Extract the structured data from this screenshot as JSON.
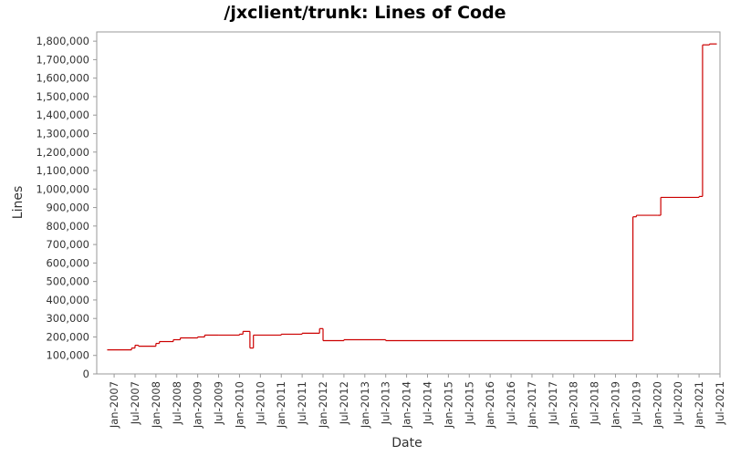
{
  "chart_data": {
    "type": "line",
    "title": "/jxclient/trunk: Lines of Code",
    "x_label": "Date",
    "y_label": "Lines",
    "color": "#cc0000",
    "step": true,
    "x": [
      "2006-11",
      "2007-06",
      "2007-07",
      "2007-08",
      "2008-01",
      "2008-02",
      "2008-06",
      "2008-08",
      "2009-01",
      "2009-03",
      "2009-07",
      "2010-01",
      "2010-02",
      "2010-04",
      "2010-05",
      "2011-01",
      "2011-07",
      "2011-12",
      "2012-01",
      "2012-07",
      "2013-07",
      "2019-06",
      "2019-07",
      "2020-01",
      "2020-02",
      "2021-01",
      "2021-02",
      "2021-04"
    ],
    "values": [
      130000,
      140000,
      155000,
      150000,
      165000,
      175000,
      185000,
      195000,
      200000,
      210000,
      210000,
      215000,
      230000,
      140000,
      210000,
      215000,
      220000,
      245000,
      180000,
      185000,
      180000,
      850000,
      858000,
      858000,
      955000,
      960000,
      1780000,
      1785000
    ],
    "xlim": [
      "2006-08",
      "2021-07"
    ],
    "xticks": [
      {
        "value": "2007-01",
        "label": "Jan-2007"
      },
      {
        "value": "2007-07",
        "label": "Jul-2007"
      },
      {
        "value": "2008-01",
        "label": "Jan-2008"
      },
      {
        "value": "2008-07",
        "label": "Jul-2008"
      },
      {
        "value": "2009-01",
        "label": "Jan-2009"
      },
      {
        "value": "2009-07",
        "label": "Jul-2009"
      },
      {
        "value": "2010-01",
        "label": "Jan-2010"
      },
      {
        "value": "2010-07",
        "label": "Jul-2010"
      },
      {
        "value": "2011-01",
        "label": "Jan-2011"
      },
      {
        "value": "2011-07",
        "label": "Jul-2011"
      },
      {
        "value": "2012-01",
        "label": "Jan-2012"
      },
      {
        "value": "2012-07",
        "label": "Jul-2012"
      },
      {
        "value": "2013-01",
        "label": "Jan-2013"
      },
      {
        "value": "2013-07",
        "label": "Jul-2013"
      },
      {
        "value": "2014-01",
        "label": "Jan-2014"
      },
      {
        "value": "2014-07",
        "label": "Jul-2014"
      },
      {
        "value": "2015-01",
        "label": "Jan-2015"
      },
      {
        "value": "2015-07",
        "label": "Jul-2015"
      },
      {
        "value": "2016-01",
        "label": "Jan-2016"
      },
      {
        "value": "2016-07",
        "label": "Jul-2016"
      },
      {
        "value": "2017-01",
        "label": "Jan-2017"
      },
      {
        "value": "2017-07",
        "label": "Jul-2017"
      },
      {
        "value": "2018-01",
        "label": "Jan-2018"
      },
      {
        "value": "2018-07",
        "label": "Jul-2018"
      },
      {
        "value": "2019-01",
        "label": "Jan-2019"
      },
      {
        "value": "2019-07",
        "label": "Jul-2019"
      },
      {
        "value": "2020-01",
        "label": "Jan-2020"
      },
      {
        "value": "2020-07",
        "label": "Jul-2020"
      },
      {
        "value": "2021-01",
        "label": "Jan-2021"
      },
      {
        "value": "2021-07",
        "label": "Jul-2021"
      }
    ],
    "ylim": [
      0,
      1850000
    ],
    "yticks": [
      0,
      {
        "value": 100000,
        "label": "100,000"
      },
      {
        "value": 200000,
        "label": "200,000"
      },
      {
        "value": 300000,
        "label": "300,000"
      },
      {
        "value": 400000,
        "label": "400,000"
      },
      {
        "value": 500000,
        "label": "500,000"
      },
      {
        "value": 600000,
        "label": "600,000"
      },
      {
        "value": 700000,
        "label": "700,000"
      },
      {
        "value": 800000,
        "label": "800,000"
      },
      {
        "value": 900000,
        "label": "900,000"
      },
      {
        "value": 1000000,
        "label": "1,000,000"
      },
      {
        "value": 1100000,
        "label": "1,100,000"
      },
      {
        "value": 1200000,
        "label": "1,200,000"
      },
      {
        "value": 1300000,
        "label": "1,300,000"
      },
      {
        "value": 1400000,
        "label": "1,400,000"
      },
      {
        "value": 1500000,
        "label": "1,500,000"
      },
      {
        "value": 1600000,
        "label": "1,600,000"
      },
      {
        "value": 1700000,
        "label": "1,700,000"
      },
      {
        "value": 1800000,
        "label": "1,800,000"
      }
    ],
    "grid": false
  }
}
